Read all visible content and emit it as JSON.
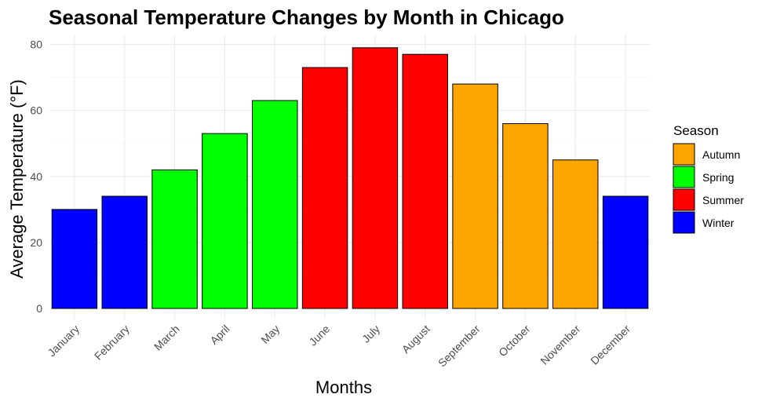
{
  "chart_data": {
    "type": "bar",
    "title": "Seasonal Temperature Changes by Month in Chicago",
    "xlabel": "Months",
    "ylabel": "Average Temperature (°F)",
    "ylim": [
      0,
      82
    ],
    "yticks": [
      "0",
      "20",
      "40",
      "60",
      "80"
    ],
    "grid": true,
    "legend_position": "right",
    "legend_title": "Season",
    "legend": [
      {
        "name": "Autumn",
        "color": "#FFA500"
      },
      {
        "name": "Spring",
        "color": "#00FF00"
      },
      {
        "name": "Summer",
        "color": "#FF0000"
      },
      {
        "name": "Winter",
        "color": "#0000FF"
      }
    ],
    "categories": [
      "January",
      "February",
      "March",
      "April",
      "May",
      "June",
      "July",
      "August",
      "September",
      "October",
      "November",
      "December"
    ],
    "values": [
      30,
      34,
      42,
      53,
      63,
      73,
      79,
      77,
      68,
      56,
      45,
      34
    ],
    "seasons": [
      "Winter",
      "Winter",
      "Spring",
      "Spring",
      "Spring",
      "Summer",
      "Summer",
      "Summer",
      "Autumn",
      "Autumn",
      "Autumn",
      "Winter"
    ]
  }
}
